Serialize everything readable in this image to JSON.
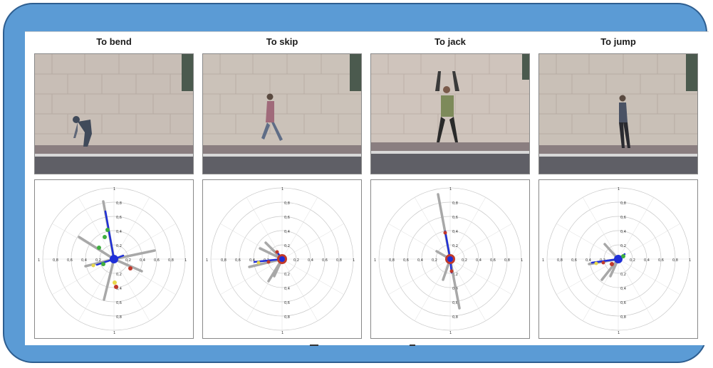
{
  "figure": {
    "panels": [
      {
        "title": "To bend"
      },
      {
        "title": "To skip"
      },
      {
        "title": "To jack"
      },
      {
        "title": "To jump"
      }
    ],
    "polar_axis": {
      "horizontal_ticks": [
        "1",
        "0,8",
        "0,6",
        "0,4",
        "0,2",
        "0,2",
        "0,4",
        "0,6",
        "0,8",
        "1"
      ],
      "vertical_ticks": [
        "1",
        "0,8",
        "0,6",
        "0,4",
        "0,2",
        "0,2",
        "0,4",
        "0,6",
        "0,8",
        "1"
      ]
    },
    "colors": {
      "frame": "#5b9bd5",
      "frame_border": "#2e5e90",
      "vector": "#1f2fd8",
      "spoke": "#a8a8a8",
      "grid": "#c9c9c9",
      "marker_red": "#c0392b",
      "marker_green": "#3fae3f",
      "marker_yellow": "#e8d84a"
    }
  }
}
